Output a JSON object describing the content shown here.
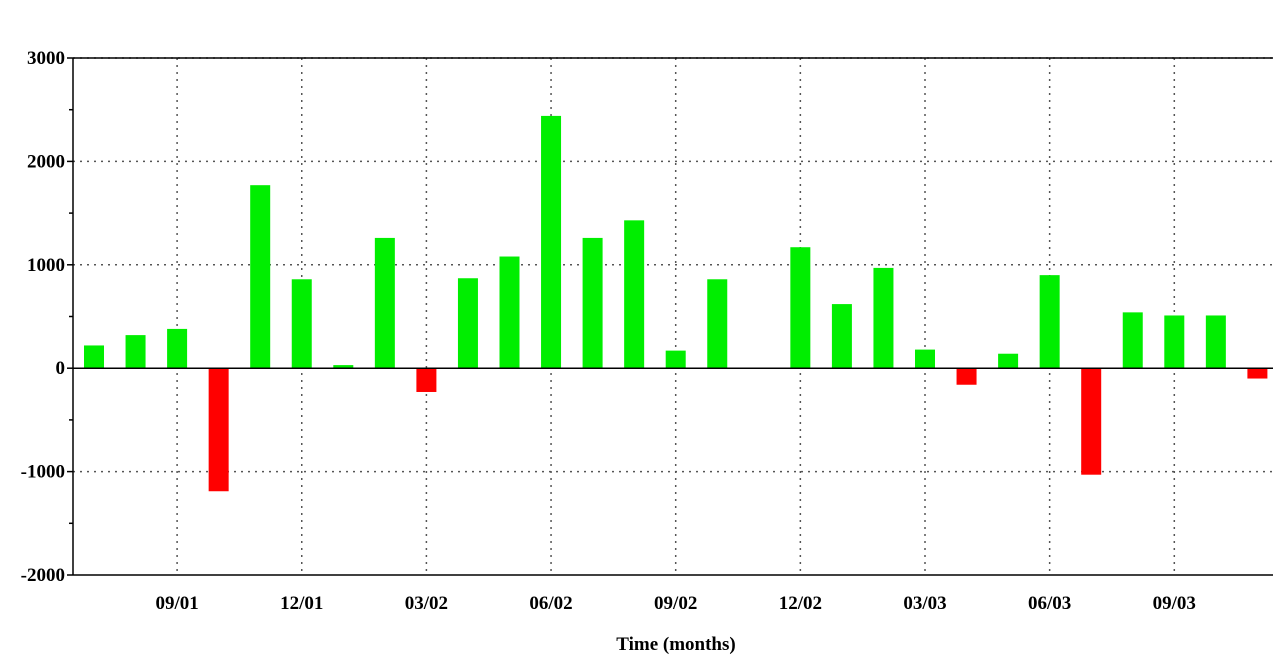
{
  "chart_data": {
    "type": "bar",
    "title": "",
    "xlabel": "Time (months)",
    "ylabel": "",
    "ylim": [
      -2000,
      3000
    ],
    "y_ticks": [
      3000,
      2000,
      1000,
      0,
      -1000,
      -2000
    ],
    "x_tick_labels": [
      "09/01",
      "12/01",
      "03/02",
      "06/02",
      "09/02",
      "12/02",
      "03/03",
      "06/03",
      "09/03"
    ],
    "grid": true,
    "grid_style": "dotted",
    "positive_color": "#00ee00",
    "negative_color": "#ff0000",
    "categories": [
      "07/01",
      "08/01",
      "09/01",
      "10/01",
      "11/01",
      "12/01",
      "01/02",
      "02/02",
      "03/02",
      "04/02",
      "05/02",
      "06/02",
      "07/02",
      "08/02",
      "09/02",
      "10/02",
      "11/02",
      "12/02",
      "01/03",
      "02/03",
      "03/03",
      "04/03",
      "05/03",
      "06/03",
      "07/03",
      "08/03",
      "09/03",
      "10/03",
      "11/03"
    ],
    "values": [
      220,
      320,
      380,
      -1190,
      1770,
      860,
      30,
      1260,
      -230,
      870,
      1080,
      2440,
      1260,
      1430,
      170,
      860,
      0,
      1170,
      620,
      970,
      180,
      -160,
      140,
      900,
      -1030,
      540,
      510,
      510,
      -100
    ]
  }
}
